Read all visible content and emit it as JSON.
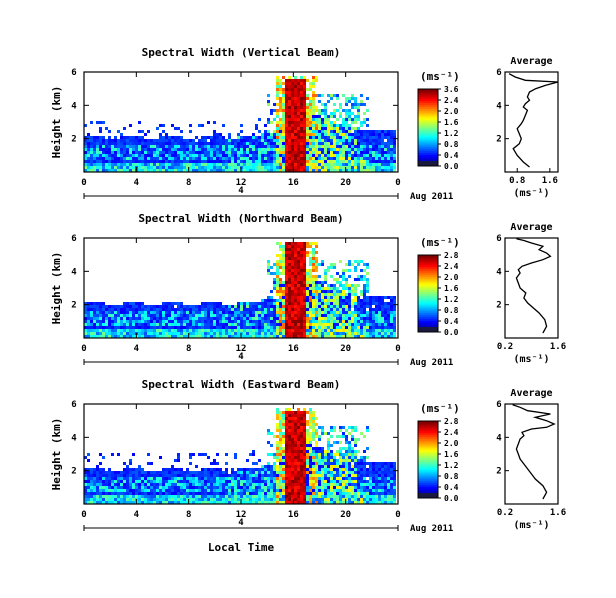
{
  "chart_data": [
    {
      "type": "heatmap",
      "title": "Spectral Width (Vertical Beam)",
      "ylabel": "Height (km)",
      "xticks": [
        "0",
        "4",
        "8",
        "12",
        "16",
        "20",
        "0"
      ],
      "yticks": [
        "2",
        "4",
        "6"
      ],
      "xlim": [
        0,
        24
      ],
      "ylim": [
        0,
        6
      ],
      "date_label": "Aug 2011",
      "date_tick": "4",
      "colorbar": {
        "unit": "(ms⁻¹)",
        "ticks": [
          "3.6",
          "2.4",
          "2.0",
          "1.6",
          "1.2",
          "0.8",
          "0.4",
          "0.0"
        ],
        "range": [
          0,
          3.6
        ]
      },
      "average": {
        "title": "Average",
        "xticks": [
          "0.8",
          "1.6"
        ],
        "xlabel": "(ms⁻¹)",
        "yticks": [
          "2",
          "4",
          "6"
        ],
        "xlim": [
          0.5,
          1.8
        ],
        "x": [
          1.1,
          0.95,
          0.8,
          0.7,
          0.85,
          0.9,
          0.85,
          0.8,
          0.9,
          0.95,
          1.0,
          1.05,
          0.95,
          1.0,
          1.1,
          1.05,
          1.1,
          1.25,
          1.5,
          1.8,
          1.0,
          0.75,
          0.6
        ],
        "y": [
          0.3,
          0.6,
          1.0,
          1.4,
          1.7,
          2.0,
          2.3,
          2.6,
          2.9,
          3.1,
          3.4,
          3.7,
          3.9,
          4.1,
          4.3,
          4.5,
          4.8,
          5.0,
          5.2,
          5.4,
          5.5,
          5.7,
          5.9
        ]
      }
    },
    {
      "type": "heatmap",
      "title": "Spectral Width (Northward Beam)",
      "ylabel": "Height (km)",
      "xticks": [
        "0",
        "4",
        "8",
        "12",
        "16",
        "20",
        "0"
      ],
      "yticks": [
        "2",
        "4",
        "6"
      ],
      "xlim": [
        0,
        24
      ],
      "ylim": [
        0,
        6
      ],
      "date_label": "Aug 2011",
      "date_tick": "4",
      "colorbar": {
        "unit": "(ms⁻¹)",
        "ticks": [
          "2.8",
          "2.4",
          "2.0",
          "1.6",
          "1.2",
          "0.8",
          "0.4",
          "0.0"
        ],
        "range": [
          0,
          2.8
        ]
      },
      "average": {
        "title": "Average",
        "xticks": [
          "0.2",
          "1.6"
        ],
        "xlabel": "(ms⁻¹)",
        "yticks": [
          "2",
          "4",
          "6"
        ],
        "xlim": [
          0.2,
          1.6
        ],
        "x": [
          1.2,
          1.3,
          1.25,
          1.1,
          0.95,
          0.8,
          0.7,
          0.75,
          0.6,
          0.55,
          0.5,
          0.6,
          0.55,
          0.65,
          0.9,
          1.2,
          1.4,
          1.3,
          1.1,
          1.2,
          0.9,
          0.7,
          0.5
        ],
        "y": [
          0.3,
          0.7,
          1.1,
          1.5,
          1.8,
          2.1,
          2.4,
          2.7,
          3.0,
          3.3,
          3.6,
          3.9,
          4.1,
          4.3,
          4.5,
          4.7,
          4.9,
          5.1,
          5.3,
          5.5,
          5.7,
          5.85,
          5.95
        ]
      }
    },
    {
      "type": "heatmap",
      "title": "Spectral Width (Eastward Beam)",
      "ylabel": "Height (km)",
      "xticks": [
        "0",
        "4",
        "8",
        "12",
        "16",
        "20",
        "0"
      ],
      "yticks": [
        "2",
        "4",
        "6"
      ],
      "xlim": [
        0,
        24
      ],
      "ylim": [
        0,
        6
      ],
      "date_label": "Aug 2011",
      "date_tick": "4",
      "xlabel": "Local Time",
      "colorbar": {
        "unit": "(ms⁻¹)",
        "ticks": [
          "2.8",
          "2.4",
          "2.0",
          "1.6",
          "1.2",
          "0.8",
          "0.4",
          "0.0"
        ],
        "range": [
          0,
          2.8
        ]
      },
      "average": {
        "title": "Average",
        "xticks": [
          "0.2",
          "1.6"
        ],
        "xlabel": "(ms⁻¹)",
        "yticks": [
          "2",
          "4",
          "6"
        ],
        "xlim": [
          0.2,
          1.6
        ],
        "x": [
          1.2,
          1.3,
          1.2,
          1.0,
          0.9,
          0.8,
          0.7,
          0.6,
          0.55,
          0.5,
          0.55,
          0.6,
          0.7,
          0.65,
          0.9,
          1.3,
          1.5,
          1.3,
          1.0,
          1.4,
          0.8,
          0.6,
          0.4
        ],
        "y": [
          0.3,
          0.7,
          1.1,
          1.5,
          1.8,
          2.1,
          2.4,
          2.7,
          3.0,
          3.3,
          3.6,
          3.9,
          4.1,
          4.3,
          4.5,
          4.6,
          4.8,
          5.0,
          5.2,
          5.4,
          5.6,
          5.8,
          5.95
        ]
      }
    }
  ]
}
